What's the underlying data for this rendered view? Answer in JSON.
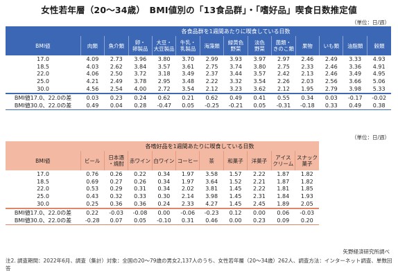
{
  "title": "女性若年層（20～34歳）　BMI値別の「13食品群」・「嗜好品」喫食日数推定値",
  "unit_label": "（単位：日/週）",
  "table1": {
    "group_header": "各食品群を1週間あたりに喫食している日数",
    "row_header": "BMI値",
    "columns": [
      "肉類",
      "魚介類",
      "卵・\n卵製品",
      "大豆・\n大豆製品",
      "牛乳・\n乳製品",
      "海藻類",
      "緑黄色\n野菜",
      "淡色\n野菜",
      "菌類・\nきのこ類",
      "果物",
      "いも類",
      "油脂類",
      "穀類"
    ],
    "rows": [
      {
        "label": "17.0",
        "values": [
          "4.09",
          "2.73",
          "3.96",
          "3.80",
          "3.70",
          "2.99",
          "3.93",
          "3.97",
          "2.97",
          "2.46",
          "2.49",
          "3.33",
          "4.93"
        ]
      },
      {
        "label": "18.5",
        "values": [
          "4.03",
          "2.62",
          "3.84",
          "3.57",
          "3.61",
          "2.75",
          "3.74",
          "3.80",
          "2.75",
          "2.33",
          "2.46",
          "3.36",
          "4.91"
        ]
      },
      {
        "label": "22.0",
        "values": [
          "4.06",
          "2.50",
          "3.72",
          "3.18",
          "3.49",
          "2.37",
          "3.44",
          "3.57",
          "2.42",
          "2.13",
          "2.46",
          "3.49",
          "4.95"
        ]
      },
      {
        "label": "25.0",
        "values": [
          "4.21",
          "2.49",
          "3.78",
          "2.95",
          "3.48",
          "2.22",
          "3.32",
          "3.54",
          "2.26",
          "2.03",
          "2.56",
          "3.66",
          "5.06"
        ]
      },
      {
        "label": "30.0",
        "values": [
          "4.56",
          "2.54",
          "4.00",
          "2.72",
          "3.54",
          "2.12",
          "3.23",
          "3.62",
          "2.12",
          "1.95",
          "2.79",
          "3.98",
          "5.33"
        ]
      }
    ],
    "diffs": [
      {
        "label": "BMI値17.0、22.0の差",
        "values": [
          "0.03",
          "0.23",
          "0.24",
          "0.62",
          "0.21",
          "0.62",
          "0.49",
          "0.41",
          "0.55",
          "0.34",
          "0.03",
          "-0.17",
          "-0.02"
        ]
      },
      {
        "label": "BMI値30.0、22.0の差",
        "values": [
          "0.49",
          "0.04",
          "0.28",
          "-0.47",
          "0.05",
          "-0.25",
          "-0.21",
          "0.05",
          "-0.31",
          "-0.18",
          "0.33",
          "0.49",
          "0.38"
        ]
      }
    ]
  },
  "table2": {
    "group_header": "各嗜好品を1週間あたりに喫食している日数",
    "row_header": "BMI値",
    "columns": [
      "ビール",
      "日本酒\n・焼酎",
      "赤ワイン",
      "白ワイン",
      "コーヒー",
      "茶",
      "和菓子",
      "洋菓子",
      "アイス\nクリーム",
      "スナック\n菓子"
    ],
    "rows": [
      {
        "label": "17.0",
        "values": [
          "0.76",
          "0.26",
          "0.22",
          "0.34",
          "1.97",
          "3.58",
          "1.57",
          "2.22",
          "1.87",
          "1.82"
        ]
      },
      {
        "label": "18.5",
        "values": [
          "0.69",
          "0.27",
          "0.26",
          "0.34",
          "1.97",
          "3.64",
          "1.52",
          "2.21",
          "1.87",
          "1.82"
        ]
      },
      {
        "label": "22.0",
        "values": [
          "0.53",
          "0.29",
          "0.31",
          "0.34",
          "2.02",
          "3.81",
          "1.45",
          "2.22",
          "1.81",
          "1.85"
        ]
      },
      {
        "label": "25.0",
        "values": [
          "0.43",
          "0.32",
          "0.33",
          "0.30",
          "2.14",
          "3.98",
          "1.45",
          "2.31",
          "1.84",
          "1.93"
        ]
      },
      {
        "label": "30.0",
        "values": [
          "0.25",
          "0.36",
          "0.36",
          "0.24",
          "2.33",
          "4.27",
          "1.45",
          "2.45",
          "1.89",
          "2.05"
        ]
      }
    ],
    "diffs": [
      {
        "label": "BMI値17.0、22.0の差",
        "values": [
          "0.22",
          "-0.03",
          "-0.08",
          "0.00",
          "-0.06",
          "-0.23",
          "0.12",
          "0.00",
          "0.06",
          "-0.03"
        ]
      },
      {
        "label": "BMI値30.0、22.0の差",
        "values": [
          "-0.28",
          "0.07",
          "0.05",
          "-0.10",
          "0.31",
          "0.46",
          "0.00",
          "0.23",
          "0.09",
          "0.20"
        ]
      }
    ]
  },
  "source": "矢野経済研究所調べ",
  "note": "注2. 調査期間：2022年6月、調査（集計）対象：全国の20～79歳の男女2,137人のうち、女性若年層（20～34歳）262人、調査方法：インターネット調査、単数回答",
  "colors": {
    "table1_header": "#3b67b5",
    "table2_header": "#f3b9a3"
  }
}
